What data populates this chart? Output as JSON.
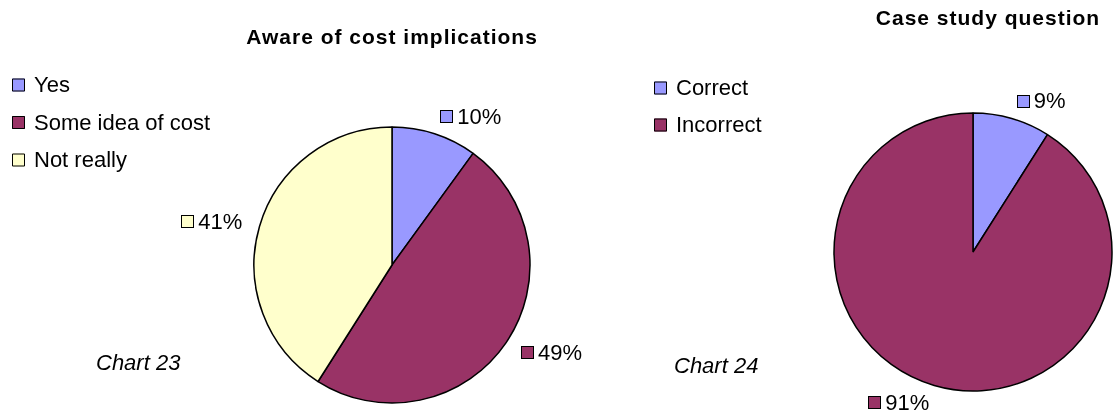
{
  "chart_data": [
    {
      "type": "pie",
      "title": "Aware of cost implications",
      "categories": [
        "Yes",
        "Some idea of cost",
        "Not really"
      ],
      "values": [
        10,
        49,
        41
      ],
      "colors": [
        "#9999ff",
        "#993366",
        "#ffffcc"
      ],
      "value_labels": [
        "10%",
        "49%",
        "41%"
      ],
      "legend": "top left",
      "annotations": [
        "Chart 23"
      ]
    },
    {
      "type": "pie",
      "title": "Case study question",
      "categories": [
        "Correct",
        "Incorrect"
      ],
      "values": [
        9,
        91
      ],
      "colors": [
        "#9999ff",
        "#993366"
      ],
      "value_labels": [
        "9%",
        "91%"
      ],
      "legend": "top left",
      "annotations": [
        "Chart 24"
      ]
    }
  ]
}
